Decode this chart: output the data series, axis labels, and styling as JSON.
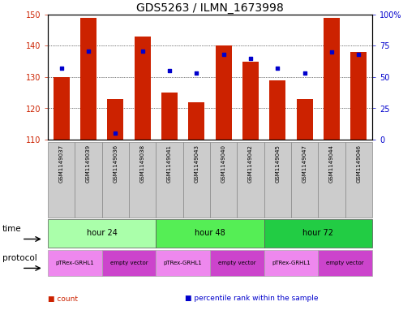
{
  "title": "GDS5263 / ILMN_1673998",
  "samples": [
    "GSM1149037",
    "GSM1149039",
    "GSM1149036",
    "GSM1149038",
    "GSM1149041",
    "GSM1149043",
    "GSM1149040",
    "GSM1149042",
    "GSM1149045",
    "GSM1149047",
    "GSM1149044",
    "GSM1149046"
  ],
  "bar_values": [
    130,
    149,
    123,
    143,
    125,
    122,
    140,
    135,
    129,
    123,
    149,
    138
  ],
  "bar_base": 110,
  "percentile_values": [
    57,
    71,
    5,
    71,
    55,
    53,
    68,
    65,
    57,
    53,
    70,
    68
  ],
  "ylim_left": [
    110,
    150
  ],
  "ylim_right": [
    0,
    100
  ],
  "yticks_left": [
    110,
    120,
    130,
    140,
    150
  ],
  "yticks_right": [
    0,
    25,
    50,
    75,
    100
  ],
  "bar_color": "#cc2200",
  "dot_color": "#0000cc",
  "grid_color": "#000000",
  "time_groups": [
    {
      "label": "hour 24",
      "start": 0,
      "end": 3,
      "color": "#aaffaa"
    },
    {
      "label": "hour 48",
      "start": 4,
      "end": 7,
      "color": "#55ee55"
    },
    {
      "label": "hour 72",
      "start": 8,
      "end": 11,
      "color": "#22cc44"
    }
  ],
  "protocol_groups": [
    {
      "label": "pTRex-GRHL1",
      "start": 0,
      "end": 1,
      "color": "#ee88ee"
    },
    {
      "label": "empty vector",
      "start": 2,
      "end": 3,
      "color": "#cc44cc"
    },
    {
      "label": "pTRex-GRHL1",
      "start": 4,
      "end": 5,
      "color": "#ee88ee"
    },
    {
      "label": "empty vector",
      "start": 6,
      "end": 7,
      "color": "#cc44cc"
    },
    {
      "label": "pTRex-GRHL1",
      "start": 8,
      "end": 9,
      "color": "#ee88ee"
    },
    {
      "label": "empty vector",
      "start": 10,
      "end": 11,
      "color": "#cc44cc"
    }
  ],
  "legend_items": [
    {
      "label": "count",
      "color": "#cc2200"
    },
    {
      "label": "percentile rank within the sample",
      "color": "#0000cc"
    }
  ],
  "bg_color": "#ffffff",
  "sample_bg_color": "#cccccc",
  "title_fontsize": 10,
  "tick_fontsize": 7,
  "label_fontsize": 8
}
